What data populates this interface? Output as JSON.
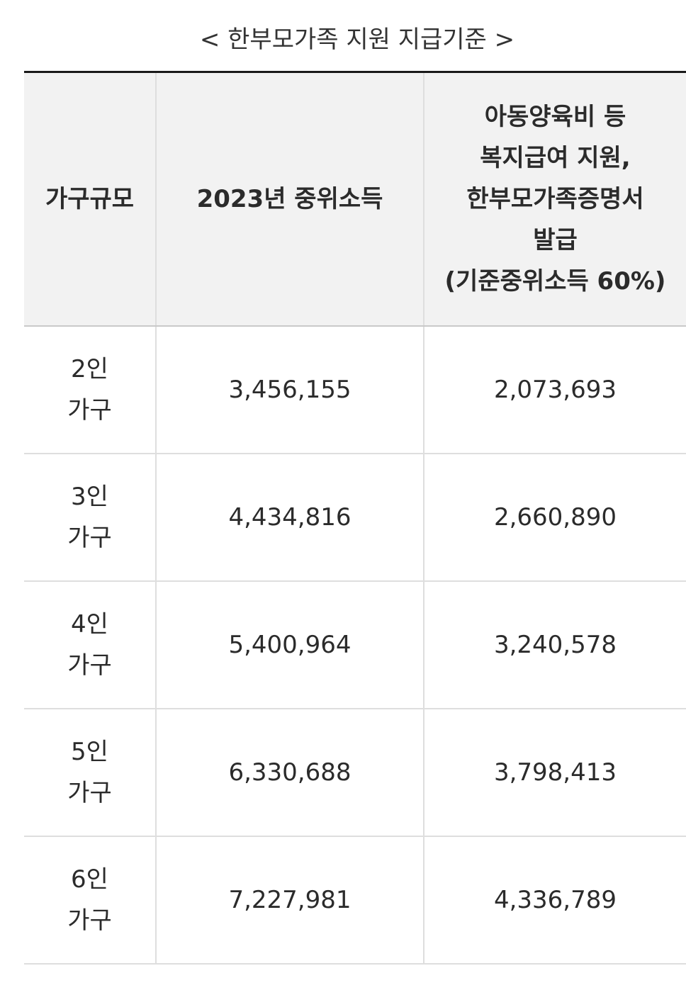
{
  "caption": "< 한부모가족 지원 지급기준 >",
  "header": {
    "col1": "가구규모",
    "col2": "2023년 중위소득",
    "col3_lines": [
      "아동양육비 등",
      "복지급여 지원,",
      "한부모가족증명서",
      "발급",
      "(기준중위소득 60%)"
    ]
  },
  "rows": [
    {
      "size_num": "2인",
      "size_unit": "가구",
      "median": "3,456,155",
      "support": "2,073,693"
    },
    {
      "size_num": "3인",
      "size_unit": "가구",
      "median": "4,434,816",
      "support": "2,660,890"
    },
    {
      "size_num": "4인",
      "size_unit": "가구",
      "median": "5,400,964",
      "support": "3,240,578"
    },
    {
      "size_num": "5인",
      "size_unit": "가구",
      "median": "6,330,688",
      "support": "3,798,413"
    },
    {
      "size_num": "6인",
      "size_unit": "가구",
      "median": "7,227,981",
      "support": "4,336,789"
    }
  ]
}
